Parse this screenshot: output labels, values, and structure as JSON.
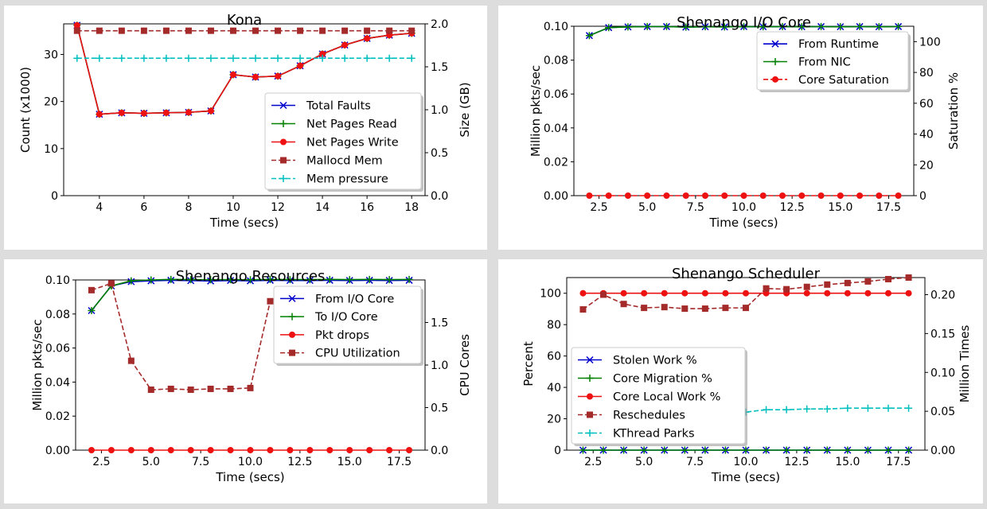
{
  "chart_data": [
    {
      "type": "line",
      "title": "Kona",
      "xlabel": "Time (secs)",
      "ylabel": "Count (x1000)",
      "y2label": "Size (GB)",
      "xlim": [
        2.4,
        18.6
      ],
      "ylim": [
        0,
        36.5
      ],
      "y2lim": [
        0,
        2.0
      ],
      "xticks": [
        4,
        6,
        8,
        10,
        12,
        14,
        16,
        18
      ],
      "xtick_labels": [
        "4",
        "6",
        "8",
        "10",
        "12",
        "14",
        "16",
        "18"
      ],
      "yticks": [
        0,
        10,
        20,
        30
      ],
      "ytick_labels": [
        "0",
        "10",
        "20",
        "30"
      ],
      "y2ticks": [
        0,
        0.5,
        1.0,
        1.5,
        2.0
      ],
      "y2tick_labels": [
        "0.0",
        "0.5",
        "1.0",
        "1.5",
        "2.0"
      ],
      "legend_position": "lower-right",
      "series": [
        {
          "name": "Total Faults",
          "axis": "left",
          "color": "#0000cc",
          "marker": "x",
          "dash": "solid",
          "x": [
            3,
            4,
            5,
            6,
            7,
            8,
            9,
            10,
            11,
            12,
            13,
            14,
            15,
            16,
            17,
            18
          ],
          "y": [
            36.2,
            17.3,
            17.6,
            17.5,
            17.6,
            17.7,
            18.0,
            25.7,
            25.2,
            25.4,
            27.6,
            30.1,
            32.0,
            33.4,
            34.1,
            34.5
          ]
        },
        {
          "name": "Net Pages Read",
          "axis": "left",
          "color": "#008000",
          "marker": "+",
          "dash": "solid",
          "x": [
            3,
            4,
            5,
            6,
            7,
            8,
            9,
            10,
            11,
            12,
            13,
            14,
            15,
            16,
            17,
            18
          ],
          "y": [
            36.2,
            17.3,
            17.6,
            17.5,
            17.6,
            17.7,
            18.0,
            25.7,
            25.2,
            25.4,
            27.6,
            30.1,
            32.0,
            33.4,
            34.1,
            34.5
          ]
        },
        {
          "name": "Net Pages Write",
          "axis": "left",
          "color": "#ee1111",
          "marker": "o",
          "dash": "solid",
          "x": [
            3,
            4,
            5,
            6,
            7,
            8,
            9,
            10,
            11,
            12,
            13,
            14,
            15,
            16,
            17,
            18
          ],
          "y": [
            36.2,
            17.3,
            17.6,
            17.5,
            17.6,
            17.7,
            18.0,
            25.7,
            25.2,
            25.4,
            27.6,
            30.1,
            32.0,
            33.4,
            34.1,
            34.5
          ]
        },
        {
          "name": "Mallocd Mem",
          "axis": "right",
          "color": "#a52a2a",
          "marker": "s",
          "dash": "dashed",
          "x": [
            3,
            4,
            5,
            6,
            7,
            8,
            9,
            10,
            11,
            12,
            13,
            14,
            15,
            16,
            17,
            18
          ],
          "y": [
            1.92,
            1.92,
            1.92,
            1.92,
            1.92,
            1.92,
            1.92,
            1.92,
            1.92,
            1.92,
            1.92,
            1.92,
            1.92,
            1.92,
            1.92,
            1.92
          ]
        },
        {
          "name": "Mem pressure",
          "axis": "right",
          "color": "#00bfbf",
          "marker": "+",
          "dash": "dashed",
          "x": [
            3,
            4,
            5,
            6,
            7,
            8,
            9,
            10,
            11,
            12,
            13,
            14,
            15,
            16,
            17,
            18
          ],
          "y": [
            1.6,
            1.6,
            1.6,
            1.6,
            1.6,
            1.6,
            1.6,
            1.6,
            1.6,
            1.6,
            1.6,
            1.6,
            1.6,
            1.6,
            1.6,
            1.6
          ]
        }
      ]
    },
    {
      "type": "line",
      "title": "Shenango I/O Core",
      "xlabel": "Time (secs)",
      "ylabel": "Million pkts/sec",
      "y2label": "Saturation %",
      "xlim": [
        1.2,
        18.8
      ],
      "ylim": [
        0,
        0.1
      ],
      "y2lim": [
        0,
        110
      ],
      "xticks": [
        2.5,
        5.0,
        7.5,
        10.0,
        12.5,
        15.0,
        17.5
      ],
      "xtick_labels": [
        "2.5",
        "5.0",
        "7.5",
        "10.0",
        "12.5",
        "15.0",
        "17.5"
      ],
      "yticks": [
        0,
        0.02,
        0.04,
        0.06,
        0.08,
        0.1
      ],
      "ytick_labels": [
        "0.00",
        "0.02",
        "0.04",
        "0.06",
        "0.08",
        "0.10"
      ],
      "y2ticks": [
        0,
        20,
        40,
        60,
        80,
        100
      ],
      "y2tick_labels": [
        "0",
        "20",
        "40",
        "60",
        "80",
        "100"
      ],
      "legend_position": "upper-right",
      "series": [
        {
          "name": "From Runtime",
          "axis": "left",
          "color": "#0000cc",
          "marker": "x",
          "dash": "solid",
          "x": [
            2,
            3,
            4,
            5,
            6,
            7,
            8,
            9,
            10,
            11,
            12,
            13,
            14,
            15,
            16,
            17,
            18
          ],
          "y": [
            0.0945,
            0.0992,
            0.0996,
            0.0998,
            0.0998,
            0.0995,
            0.0997,
            0.0996,
            0.0998,
            0.0997,
            0.0998,
            0.0997,
            0.0998,
            0.0997,
            0.0998,
            0.0997,
            0.0998
          ]
        },
        {
          "name": "From NIC",
          "axis": "left",
          "color": "#008000",
          "marker": "+",
          "dash": "solid",
          "x": [
            2,
            3,
            4,
            5,
            6,
            7,
            8,
            9,
            10,
            11,
            12,
            13,
            14,
            15,
            16,
            17,
            18
          ],
          "y": [
            0.0945,
            0.0992,
            0.0996,
            0.0998,
            0.0998,
            0.0995,
            0.0997,
            0.0996,
            0.0998,
            0.0997,
            0.0998,
            0.0997,
            0.0998,
            0.0997,
            0.0998,
            0.0997,
            0.0998
          ]
        },
        {
          "name": "Core Saturation",
          "axis": "right",
          "color": "#ee1111",
          "marker": "o",
          "dash": "dashed",
          "x": [
            2,
            3,
            4,
            5,
            6,
            7,
            8,
            9,
            10,
            11,
            12,
            13,
            14,
            15,
            16,
            17,
            18
          ],
          "y": [
            0,
            0,
            0,
            0,
            0,
            0,
            0,
            0,
            0,
            0,
            0,
            0,
            0,
            0,
            0,
            0,
            0
          ]
        }
      ]
    },
    {
      "type": "line",
      "title": "Shenango Resources",
      "xlabel": "Time (secs)",
      "ylabel": "Million pkts/sec",
      "y2label": "CPU Cores",
      "xlim": [
        1.2,
        18.8
      ],
      "ylim": [
        0,
        0.1
      ],
      "y2lim": [
        0,
        2.0
      ],
      "xticks": [
        2.5,
        5.0,
        7.5,
        10.0,
        12.5,
        15.0,
        17.5
      ],
      "xtick_labels": [
        "2.5",
        "5.0",
        "7.5",
        "10.0",
        "12.5",
        "15.0",
        "17.5"
      ],
      "yticks": [
        0,
        0.02,
        0.04,
        0.06,
        0.08,
        0.1
      ],
      "ytick_labels": [
        "0.00",
        "0.02",
        "0.04",
        "0.06",
        "0.08",
        "0.10"
      ],
      "y2ticks": [
        0,
        0.5,
        1.0,
        1.5
      ],
      "y2tick_labels": [
        "0.0",
        "0.5",
        "1.0",
        "1.5"
      ],
      "legend_position": "upper-right",
      "series": [
        {
          "name": "From I/O Core",
          "axis": "left",
          "color": "#0000cc",
          "marker": "x",
          "dash": "solid",
          "x": [
            2,
            3,
            4,
            5,
            6,
            7,
            8,
            9,
            10,
            11,
            12,
            13,
            14,
            15,
            16,
            17,
            18
          ],
          "y": [
            0.082,
            0.0965,
            0.099,
            0.0995,
            0.0998,
            0.0996,
            0.0994,
            0.0997,
            0.0995,
            0.0998,
            0.0997,
            0.0997,
            0.0998,
            0.0997,
            0.0998,
            0.0997,
            0.0998
          ]
        },
        {
          "name": "To I/O Core",
          "axis": "left",
          "color": "#008000",
          "marker": "+",
          "dash": "solid",
          "x": [
            2,
            3,
            4,
            5,
            6,
            7,
            8,
            9,
            10,
            11,
            12,
            13,
            14,
            15,
            16,
            17,
            18
          ],
          "y": [
            0.082,
            0.0965,
            0.0995,
            0.1,
            0.1003,
            0.1002,
            0.1001,
            0.1002,
            0.1001,
            0.1003,
            0.1002,
            0.1002,
            0.1003,
            0.1002,
            0.1003,
            0.1002,
            0.1003
          ]
        },
        {
          "name": "Pkt drops",
          "axis": "left",
          "color": "#ee1111",
          "marker": "o",
          "dash": "solid",
          "x": [
            2,
            3,
            4,
            5,
            6,
            7,
            8,
            9,
            10,
            11,
            12,
            13,
            14,
            15,
            16,
            17,
            18
          ],
          "y": [
            0,
            0,
            0,
            0,
            0,
            0,
            0,
            0,
            0,
            0,
            0,
            0,
            0,
            0,
            0,
            0,
            0
          ]
        },
        {
          "name": "CPU Utilization",
          "axis": "right",
          "color": "#a52a2a",
          "marker": "s",
          "dash": "dashed",
          "x": [
            2,
            3,
            4,
            5,
            6,
            7,
            8,
            9,
            10,
            11,
            12,
            13,
            14,
            15,
            16,
            17,
            18
          ],
          "y": [
            1.88,
            1.96,
            1.05,
            0.71,
            0.72,
            0.71,
            0.72,
            0.72,
            0.73,
            1.75,
            1.71,
            1.73,
            1.75,
            1.77,
            1.79,
            1.82,
            1.85
          ]
        }
      ]
    },
    {
      "type": "line",
      "title": "Shenango Scheduler",
      "xlabel": "Time (secs)",
      "ylabel": "Percent",
      "y2label": "Million Times",
      "xlim": [
        1.2,
        18.8
      ],
      "ylim": [
        0,
        110
      ],
      "y2lim": [
        0,
        0.222
      ],
      "xticks": [
        2.5,
        5.0,
        7.5,
        10.0,
        12.5,
        15.0,
        17.5
      ],
      "xtick_labels": [
        "2.5",
        "5.0",
        "7.5",
        "10.0",
        "12.5",
        "15.0",
        "17.5"
      ],
      "yticks": [
        0,
        20,
        40,
        60,
        80,
        100
      ],
      "ytick_labels": [
        "0",
        "20",
        "40",
        "60",
        "80",
        "100"
      ],
      "y2ticks": [
        0,
        0.05,
        0.1,
        0.15,
        0.2
      ],
      "y2tick_labels": [
        "0.00",
        "0.05",
        "0.10",
        "0.15",
        "0.20"
      ],
      "legend_position": "lower-left",
      "series": [
        {
          "name": "Stolen Work %",
          "axis": "left",
          "color": "#0000cc",
          "marker": "x",
          "dash": "solid",
          "x": [
            2,
            3,
            4,
            5,
            6,
            7,
            8,
            9,
            10,
            11,
            12,
            13,
            14,
            15,
            16,
            17,
            18
          ],
          "y": [
            0,
            0,
            0,
            0,
            0,
            0,
            0,
            0,
            0,
            0,
            0,
            0,
            0,
            0,
            0,
            0,
            0
          ]
        },
        {
          "name": "Core Migration %",
          "axis": "left",
          "color": "#008000",
          "marker": "+",
          "dash": "solid",
          "x": [
            2,
            3,
            4,
            5,
            6,
            7,
            8,
            9,
            10,
            11,
            12,
            13,
            14,
            15,
            16,
            17,
            18
          ],
          "y": [
            0,
            0,
            0,
            0,
            0,
            0,
            0,
            0,
            0,
            0,
            0,
            0,
            0,
            0,
            0,
            0,
            0
          ]
        },
        {
          "name": "Core Local Work %",
          "axis": "left",
          "color": "#ee1111",
          "marker": "o",
          "dash": "solid",
          "x": [
            2,
            3,
            4,
            5,
            6,
            7,
            8,
            9,
            10,
            11,
            12,
            13,
            14,
            15,
            16,
            17,
            18
          ],
          "y": [
            100,
            100,
            100,
            100,
            100,
            100,
            100,
            100,
            100,
            100,
            100,
            100,
            100,
            100,
            100,
            100,
            100
          ]
        },
        {
          "name": "Reschedules",
          "axis": "right",
          "color": "#a52a2a",
          "marker": "s",
          "dash": "dashed",
          "x": [
            2,
            3,
            4,
            5,
            6,
            7,
            8,
            9,
            10,
            11,
            12,
            13,
            14,
            15,
            16,
            17,
            18
          ],
          "y": [
            0.181,
            0.2,
            0.188,
            0.183,
            0.184,
            0.182,
            0.182,
            0.183,
            0.183,
            0.208,
            0.207,
            0.21,
            0.213,
            0.215,
            0.217,
            0.22,
            0.222
          ]
        },
        {
          "name": "KThread Parks",
          "axis": "right",
          "color": "#00bfbf",
          "marker": "+",
          "dash": "dashed",
          "x": [
            2,
            3,
            4,
            5,
            6,
            7,
            8,
            9,
            10,
            11,
            12,
            13,
            14,
            15,
            16,
            17,
            18
          ],
          "y": [
            0.062,
            0.06,
            0.052,
            0.051,
            0.05,
            0.05,
            0.05,
            0.049,
            0.049,
            0.052,
            0.052,
            0.053,
            0.053,
            0.054,
            0.054,
            0.054,
            0.054
          ]
        }
      ]
    }
  ]
}
